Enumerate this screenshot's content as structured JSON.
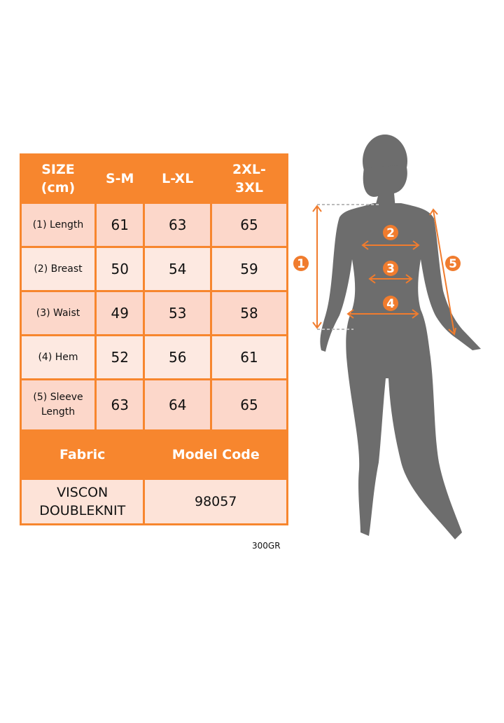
{
  "table": {
    "header": [
      "SIZE (cm)",
      "S-M",
      "L-XL",
      "2XL-3XL"
    ],
    "header_lines": [
      [
        "SIZE",
        "(cm)"
      ],
      [
        "S-M"
      ],
      [
        "L-XL"
      ],
      [
        "2XL-",
        "3XL"
      ]
    ],
    "rows": [
      {
        "label": "(1) Length",
        "values": [
          "61",
          "63",
          "65"
        ]
      },
      {
        "label": "(2) Breast",
        "values": [
          "50",
          "54",
          "59"
        ]
      },
      {
        "label": "(3) Waist",
        "values": [
          "49",
          "53",
          "58"
        ]
      },
      {
        "label": "(4) Hem",
        "values": [
          "52",
          "56",
          "61"
        ]
      },
      {
        "label_lines": [
          "(5) Sleeve",
          "Length"
        ],
        "values": [
          "63",
          "64",
          "65"
        ]
      }
    ],
    "fabric_header": "Fabric",
    "model_code_header": "Model Code",
    "fabric_lines": [
      "VISCON",
      "DOUBLEKNIT"
    ],
    "model_code": "98057"
  },
  "note": "300GR",
  "figure": {
    "badges": [
      "1",
      "2",
      "3",
      "4",
      "5"
    ]
  },
  "colors": {
    "accent": "#f7862e",
    "silhouette": "#6d6d6d",
    "row_dark": "#fcd7ca",
    "row_light": "#fde9e1"
  }
}
